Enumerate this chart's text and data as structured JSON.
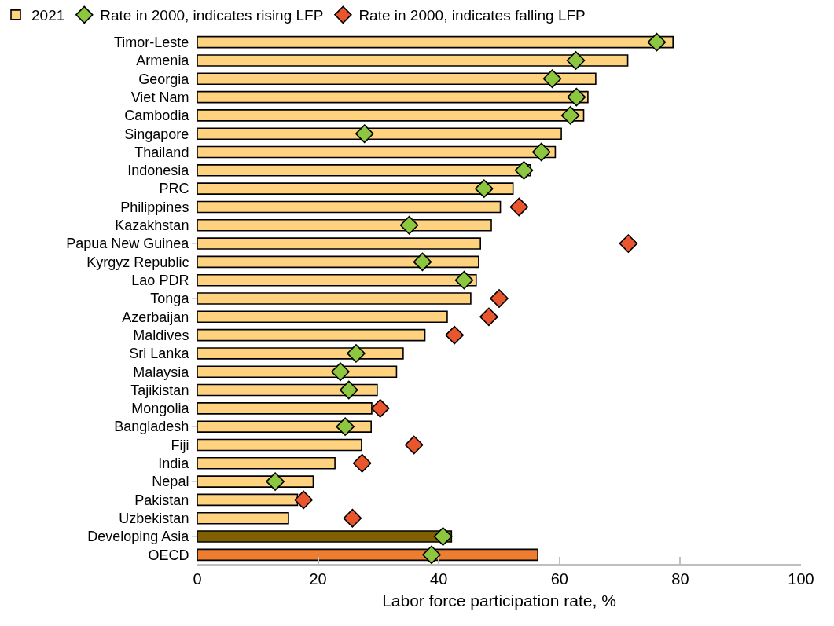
{
  "chart_data": {
    "type": "bar",
    "orientation": "horizontal",
    "xlabel": "Labor force participation rate, %",
    "categories": [
      "Timor-Leste",
      "Armenia",
      "Georgia",
      "Viet Nam",
      "Cambodia",
      "Singapore",
      "Thailand",
      "Indonesia",
      "PRC",
      "Philippines",
      "Kazakhstan",
      "Papua New Guinea",
      "Kyrgyz Republic",
      "Lao PDR",
      "Tonga",
      "Azerbaijan",
      "Maldives",
      "Sri Lanka",
      "Malaysia",
      "Tajikistan",
      "Mongolia",
      "Bangladesh",
      "Fiji",
      "India",
      "Nepal",
      "Pakistan",
      "Uzbekistan",
      "Developing Asia",
      "OECD"
    ],
    "series": [
      {
        "name": "2021",
        "color": "#ffd27f",
        "colors": [
          null,
          null,
          null,
          null,
          null,
          null,
          null,
          null,
          null,
          null,
          null,
          null,
          null,
          null,
          null,
          null,
          null,
          null,
          null,
          null,
          null,
          null,
          null,
          null,
          null,
          null,
          null,
          "#7f5f00",
          "#ed7d31"
        ],
        "values": [
          78.8,
          71.3,
          66.0,
          64.7,
          64.0,
          60.3,
          59.3,
          55.2,
          52.3,
          50.2,
          48.7,
          46.9,
          46.6,
          46.2,
          45.3,
          41.4,
          37.7,
          34.1,
          33.0,
          29.8,
          28.9,
          28.8,
          27.2,
          22.8,
          19.2,
          16.6,
          15.1,
          42.1,
          56.4
        ]
      },
      {
        "name": "Rate in 2000, indicates rising LFP",
        "type": "scatter",
        "color": "#8dc63f",
        "values": [
          76.1,
          62.7,
          58.8,
          62.8,
          61.8,
          27.7,
          57.0,
          54.1,
          47.5,
          null,
          35.1,
          null,
          37.3,
          44.2,
          null,
          null,
          null,
          26.3,
          23.7,
          25.1,
          null,
          24.5,
          null,
          null,
          12.9,
          null,
          null,
          40.7,
          38.8
        ]
      },
      {
        "name": "Rate in 2000, indicates falling LFP",
        "type": "scatter",
        "color": "#e9552d",
        "values": [
          null,
          null,
          null,
          null,
          null,
          null,
          null,
          null,
          null,
          53.3,
          null,
          71.4,
          null,
          null,
          50.0,
          48.3,
          42.6,
          null,
          null,
          null,
          30.3,
          null,
          35.9,
          27.3,
          null,
          17.6,
          25.7,
          null,
          null
        ]
      }
    ],
    "xlim": [
      0,
      100
    ],
    "xticks": [
      0,
      20,
      40,
      60,
      80,
      100
    ],
    "grid": false,
    "legend": "top",
    "marker": "diamond"
  }
}
